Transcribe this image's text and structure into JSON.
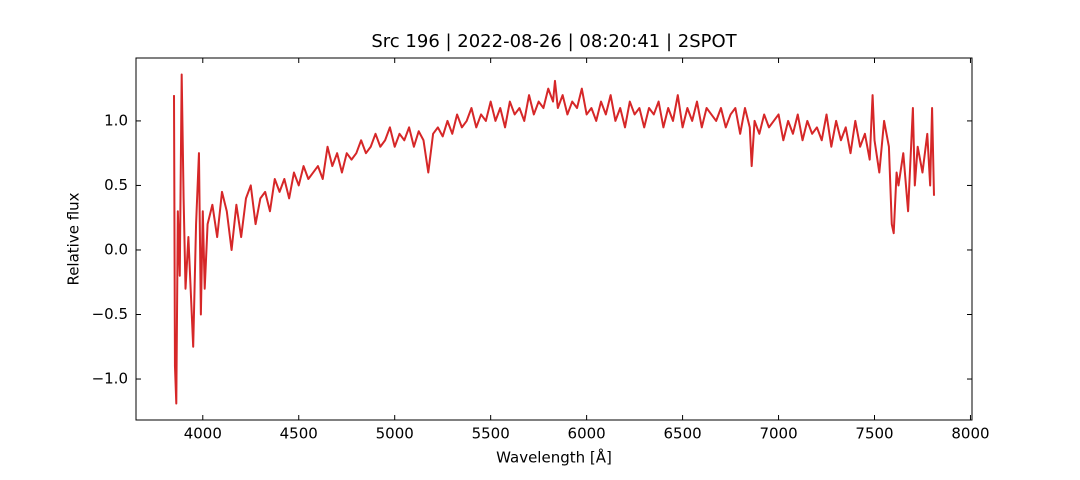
{
  "chart_data": {
    "type": "line",
    "title": "Src 196 | 2022-08-26 | 08:20:41 | 2SPOT",
    "x_label": "Wavelength [Å]",
    "y_label": "Relative flux",
    "color": "#d62728",
    "xlim": [
      3652,
      8008
    ],
    "ylim": [
      -1.3175,
      1.4875
    ],
    "xticks": [
      4000,
      4500,
      5000,
      5500,
      6000,
      6500,
      7000,
      7500,
      8000
    ],
    "yticks": [
      {
        "value": -1,
        "label": "−1.0"
      },
      {
        "value": -0.5,
        "label": "−0.5"
      },
      {
        "value": 0,
        "label": "0.0"
      },
      0.5,
      {
        "value": 1,
        "label": "1.0"
      }
    ],
    "x": [
      3850,
      3855,
      3862,
      3870,
      3880,
      3890,
      3900,
      3910,
      3925,
      3950,
      3965,
      3980,
      3990,
      4000,
      4010,
      4025,
      4050,
      4075,
      4100,
      4125,
      4150,
      4175,
      4200,
      4225,
      4250,
      4275,
      4300,
      4325,
      4350,
      4375,
      4400,
      4425,
      4450,
      4475,
      4500,
      4525,
      4550,
      4575,
      4600,
      4625,
      4650,
      4675,
      4700,
      4725,
      4750,
      4775,
      4800,
      4825,
      4850,
      4875,
      4900,
      4925,
      4950,
      4975,
      5000,
      5025,
      5050,
      5075,
      5100,
      5125,
      5150,
      5175,
      5200,
      5225,
      5250,
      5275,
      5300,
      5325,
      5350,
      5375,
      5400,
      5425,
      5450,
      5475,
      5500,
      5525,
      5550,
      5575,
      5600,
      5625,
      5650,
      5675,
      5700,
      5725,
      5750,
      5775,
      5800,
      5825,
      5835,
      5850,
      5875,
      5900,
      5925,
      5950,
      5975,
      6000,
      6025,
      6050,
      6075,
      6100,
      6125,
      6150,
      6175,
      6200,
      6225,
      6250,
      6275,
      6300,
      6325,
      6350,
      6375,
      6400,
      6425,
      6450,
      6475,
      6500,
      6525,
      6550,
      6575,
      6600,
      6625,
      6650,
      6675,
      6700,
      6725,
      6750,
      6775,
      6800,
      6825,
      6850,
      6860,
      6875,
      6900,
      6925,
      6950,
      6975,
      7000,
      7025,
      7050,
      7075,
      7100,
      7125,
      7150,
      7175,
      7200,
      7225,
      7250,
      7275,
      7300,
      7325,
      7350,
      7375,
      7400,
      7425,
      7450,
      7475,
      7490,
      7500,
      7525,
      7550,
      7575,
      7590,
      7600,
      7615,
      7625,
      7650,
      7675,
      7700,
      7710,
      7725,
      7750,
      7775,
      7790,
      7800,
      7810
    ],
    "values": [
      1.2,
      -0.9,
      -1.19,
      0.3,
      -0.2,
      1.36,
      0.4,
      -0.3,
      0.1,
      -0.75,
      0.2,
      0.75,
      -0.5,
      0.3,
      -0.3,
      0.2,
      0.35,
      0.1,
      0.45,
      0.3,
      0.0,
      0.35,
      0.1,
      0.4,
      0.5,
      0.2,
      0.4,
      0.45,
      0.3,
      0.55,
      0.45,
      0.55,
      0.4,
      0.6,
      0.5,
      0.65,
      0.55,
      0.6,
      0.65,
      0.55,
      0.8,
      0.65,
      0.75,
      0.6,
      0.75,
      0.7,
      0.75,
      0.85,
      0.75,
      0.8,
      0.9,
      0.8,
      0.85,
      0.95,
      0.8,
      0.9,
      0.85,
      0.95,
      0.8,
      0.92,
      0.85,
      0.6,
      0.9,
      0.95,
      0.88,
      1.0,
      0.9,
      1.05,
      0.95,
      1.0,
      1.1,
      0.95,
      1.05,
      1.0,
      1.15,
      1.0,
      1.1,
      0.95,
      1.15,
      1.05,
      1.1,
      1.0,
      1.2,
      1.05,
      1.15,
      1.1,
      1.25,
      1.15,
      1.31,
      1.1,
      1.2,
      1.05,
      1.15,
      1.1,
      1.25,
      1.05,
      1.1,
      1.0,
      1.15,
      1.05,
      1.2,
      1.0,
      1.1,
      0.95,
      1.15,
      1.05,
      1.1,
      0.95,
      1.1,
      1.05,
      1.15,
      0.95,
      1.1,
      1.0,
      1.2,
      0.95,
      1.1,
      1.0,
      1.15,
      0.95,
      1.1,
      1.05,
      1.0,
      1.1,
      0.95,
      1.05,
      1.1,
      0.9,
      1.1,
      0.95,
      0.65,
      1.0,
      0.9,
      1.05,
      0.95,
      1.0,
      1.05,
      0.85,
      1.0,
      0.9,
      1.05,
      0.85,
      1.0,
      0.9,
      0.95,
      0.85,
      1.05,
      0.8,
      1.0,
      0.85,
      0.95,
      0.75,
      1.0,
      0.8,
      0.9,
      0.7,
      1.2,
      0.85,
      0.6,
      1.0,
      0.8,
      0.2,
      0.13,
      0.6,
      0.5,
      0.75,
      0.3,
      1.1,
      0.5,
      0.8,
      0.6,
      0.9,
      0.5,
      1.1,
      0.42
    ]
  }
}
